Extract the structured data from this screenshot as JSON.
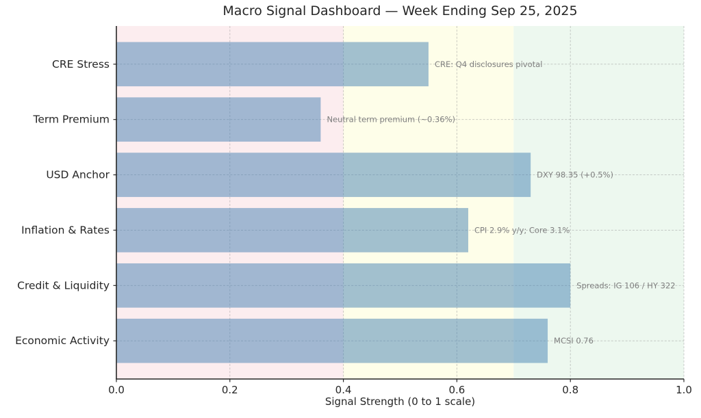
{
  "chart_data": {
    "type": "bar",
    "orientation": "horizontal",
    "title": "Macro Signal Dashboard — Week Ending Sep 25, 2025",
    "xlabel": "Signal Strength (0 to 1 scale)",
    "ylabel": "",
    "xlim": [
      0.0,
      1.0
    ],
    "xticks": [
      0.0,
      0.2,
      0.4,
      0.6,
      0.8,
      1.0
    ],
    "grid": true,
    "legend": "none",
    "categories": [
      "CRE Stress",
      "Term Premium",
      "USD Anchor",
      "Inflation & Rates",
      "Credit & Liquidity",
      "Economic Activity"
    ],
    "values": [
      0.55,
      0.36,
      0.73,
      0.62,
      0.8,
      0.76
    ],
    "annotations": [
      "CRE: Q4 disclosures pivotal",
      "Neutral term premium (~0.36%)",
      "DXY 98.35 (+0.5%)",
      "CPI 2.9% y/y; Core 3.1%",
      "Spreads: IG 106 / HY 322",
      "MCSI 0.76"
    ],
    "zones": [
      {
        "from": 0.0,
        "to": 0.4,
        "color": "#fcedef"
      },
      {
        "from": 0.4,
        "to": 0.7,
        "color": "#fefee9"
      },
      {
        "from": 0.7,
        "to": 1.0,
        "color": "#edf8ef"
      }
    ],
    "colors": {
      "bar": "#4682B4",
      "bar_opacity": 0.5,
      "annotation_text": "#7f7f7f",
      "axis_text": "#262626",
      "spine": "#262626",
      "gridline": "#999999"
    }
  }
}
